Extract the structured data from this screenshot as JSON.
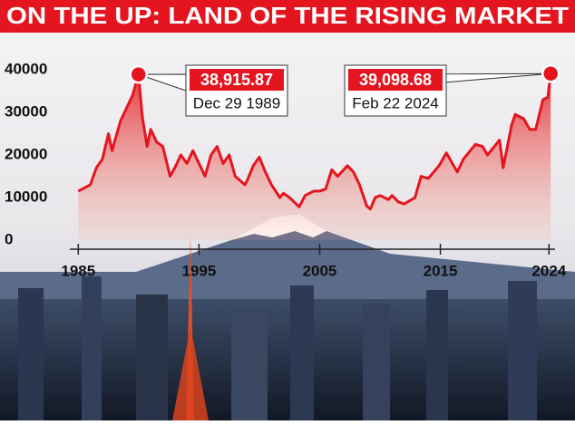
{
  "chart_data": {
    "type": "line",
    "title": "ON THE UP: LAND OF THE RISING MARKET",
    "color": "#e4151f",
    "xlim": [
      1984.3,
      2024.5
    ],
    "xticks": [
      1985,
      1995,
      2005,
      2015,
      2024
    ],
    "ylim": [
      0,
      40000
    ],
    "yticks": [
      0,
      10000,
      20000,
      30000,
      40000
    ],
    "x": [
      1985,
      1986,
      1986.5,
      1987,
      1987.5,
      1987.8,
      1988,
      1988.5,
      1989,
      1989.5,
      1989.99,
      1990.3,
      1990.7,
      1991,
      1991.5,
      1992,
      1992.6,
      1993,
      1993.5,
      1994,
      1994.5,
      1995,
      1995.5,
      1996,
      1996.5,
      1997,
      1997.5,
      1998,
      1998.8,
      1999,
      1999.5,
      2000,
      2000.5,
      2001,
      2001.7,
      2002,
      2002.5,
      2003.3,
      2003.8,
      2004.5,
      2005,
      2005.5,
      2006,
      2006.5,
      2007.3,
      2007.8,
      2008.3,
      2008.9,
      2009.2,
      2009.6,
      2010,
      2010.7,
      2011,
      2011.5,
      2012,
      2012.9,
      2013.4,
      2014,
      2014.9,
      2015.5,
      2016.4,
      2016.9,
      2017.9,
      2018.5,
      2018.9,
      2019.9,
      2020.2,
      2020.9,
      2021.2,
      2021.9,
      2022.4,
      2022.9,
      2023.5,
      2023.9,
      2024.14
    ],
    "values": [
      11500,
      13000,
      17000,
      19000,
      25000,
      21000,
      23000,
      28000,
      31000,
      34000,
      38915.87,
      29000,
      22000,
      26000,
      23000,
      22000,
      15000,
      17000,
      20000,
      18000,
      21000,
      18000,
      15000,
      20000,
      22000,
      18000,
      20000,
      15000,
      13000,
      14000,
      17500,
      19500,
      16000,
      13000,
      10000,
      11000,
      10000,
      7800,
      10500,
      11500,
      11500,
      12000,
      16500,
      15000,
      17500,
      16000,
      13000,
      8000,
      7300,
      10000,
      10500,
      9500,
      10500,
      9000,
      8500,
      10000,
      15000,
      14500,
      17500,
      20500,
      16000,
      19000,
      22500,
      22000,
      20000,
      23500,
      17000,
      27000,
      29500,
      28500,
      26000,
      26000,
      33000,
      33500,
      39098.68
    ],
    "annotations": [
      {
        "x": 1989.99,
        "y": 38915.87,
        "label": "38,915.87",
        "date": "Dec 29 1989"
      },
      {
        "x": 2024.14,
        "y": 39098.68,
        "label": "39,098.68",
        "date": "Feb 22 2024"
      }
    ]
  }
}
